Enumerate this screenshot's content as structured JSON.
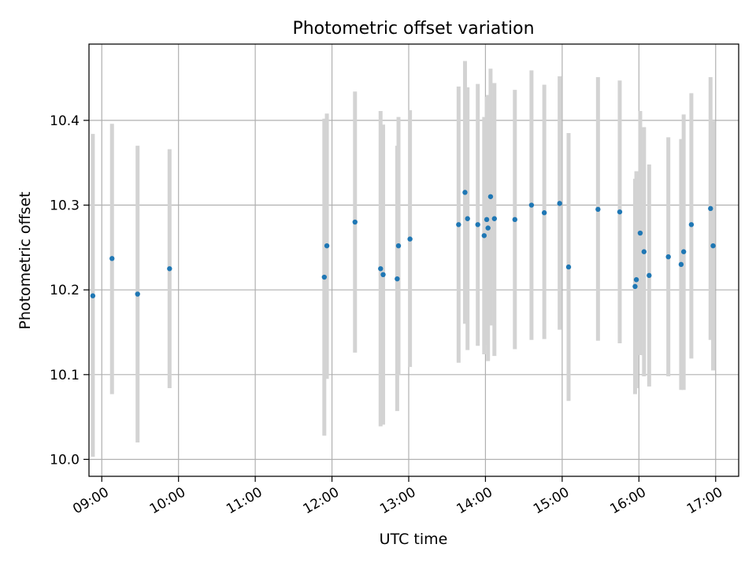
{
  "chart_data": {
    "type": "scatter",
    "title": "Photometric offset variation",
    "xlabel": "UTC time",
    "ylabel": "Photometric offset",
    "x_unit": "hours (UTC)",
    "xlim": [
      "08:50",
      "17:18"
    ],
    "ylim": [
      9.98,
      10.49
    ],
    "x_ticks": [
      "09:00",
      "10:00",
      "11:00",
      "12:00",
      "13:00",
      "14:00",
      "15:00",
      "16:00",
      "17:00"
    ],
    "y_ticks": [
      "10.0",
      "10.1",
      "10.2",
      "10.3",
      "10.4"
    ],
    "grid": true,
    "legend": "none",
    "colors": {
      "point": "#1f77b4",
      "errorbar": "#d3d3d3",
      "grid": "#b0b0b0",
      "axes": "#000000"
    },
    "points": [
      {
        "x": "08:53",
        "y": 10.193,
        "y_low": 10.003,
        "y_high": 10.384
      },
      {
        "x": "09:08",
        "y": 10.237,
        "y_low": 10.077,
        "y_high": 10.396
      },
      {
        "x": "09:28",
        "y": 10.195,
        "y_low": 10.02,
        "y_high": 10.37
      },
      {
        "x": "09:53",
        "y": 10.225,
        "y_low": 10.084,
        "y_high": 10.366
      },
      {
        "x": "11:54",
        "y": 10.215,
        "y_low": 10.028,
        "y_high": 10.402
      },
      {
        "x": "11:56",
        "y": 10.252,
        "y_low": 10.095,
        "y_high": 10.408
      },
      {
        "x": "12:18",
        "y": 10.28,
        "y_low": 10.126,
        "y_high": 10.434
      },
      {
        "x": "12:38",
        "y": 10.225,
        "y_low": 10.039,
        "y_high": 10.411
      },
      {
        "x": "12:40",
        "y": 10.218,
        "y_low": 10.041,
        "y_high": 10.395
      },
      {
        "x": "12:51",
        "y": 10.213,
        "y_low": 10.057,
        "y_high": 10.37
      },
      {
        "x": "12:52",
        "y": 10.252,
        "y_low": 10.1,
        "y_high": 10.404
      },
      {
        "x": "13:01",
        "y": 10.26,
        "y_low": 10.109,
        "y_high": 10.412
      },
      {
        "x": "13:39",
        "y": 10.277,
        "y_low": 10.114,
        "y_high": 10.44
      },
      {
        "x": "13:44",
        "y": 10.315,
        "y_low": 10.16,
        "y_high": 10.47
      },
      {
        "x": "13:46",
        "y": 10.284,
        "y_low": 10.129,
        "y_high": 10.439
      },
      {
        "x": "13:54",
        "y": 10.277,
        "y_low": 10.134,
        "y_high": 10.443
      },
      {
        "x": "13:59",
        "y": 10.264,
        "y_low": 10.124,
        "y_high": 10.404
      },
      {
        "x": "14:01",
        "y": 10.283,
        "y_low": 10.135,
        "y_high": 10.428
      },
      {
        "x": "14:02",
        "y": 10.273,
        "y_low": 10.116,
        "y_high": 10.43
      },
      {
        "x": "14:04",
        "y": 10.31,
        "y_low": 10.158,
        "y_high": 10.461
      },
      {
        "x": "14:07",
        "y": 10.284,
        "y_low": 10.122,
        "y_high": 10.444
      },
      {
        "x": "14:23",
        "y": 10.283,
        "y_low": 10.13,
        "y_high": 10.436
      },
      {
        "x": "14:36",
        "y": 10.3,
        "y_low": 10.141,
        "y_high": 10.459
      },
      {
        "x": "14:46",
        "y": 10.291,
        "y_low": 10.142,
        "y_high": 10.442
      },
      {
        "x": "14:58",
        "y": 10.302,
        "y_low": 10.153,
        "y_high": 10.452
      },
      {
        "x": "15:05",
        "y": 10.227,
        "y_low": 10.069,
        "y_high": 10.385
      },
      {
        "x": "15:28",
        "y": 10.295,
        "y_low": 10.14,
        "y_high": 10.451
      },
      {
        "x": "15:45",
        "y": 10.292,
        "y_low": 10.137,
        "y_high": 10.447
      },
      {
        "x": "15:57",
        "y": 10.204,
        "y_low": 10.077,
        "y_high": 10.331
      },
      {
        "x": "15:58",
        "y": 10.212,
        "y_low": 10.084,
        "y_high": 10.34
      },
      {
        "x": "16:01",
        "y": 10.267,
        "y_low": 10.123,
        "y_high": 10.411
      },
      {
        "x": "16:04",
        "y": 10.245,
        "y_low": 10.098,
        "y_high": 10.392
      },
      {
        "x": "16:08",
        "y": 10.217,
        "y_low": 10.086,
        "y_high": 10.348
      },
      {
        "x": "16:23",
        "y": 10.239,
        "y_low": 10.098,
        "y_high": 10.38
      },
      {
        "x": "16:33",
        "y": 10.23,
        "y_low": 10.082,
        "y_high": 10.378
      },
      {
        "x": "16:35",
        "y": 10.245,
        "y_low": 10.082,
        "y_high": 10.407
      },
      {
        "x": "16:41",
        "y": 10.277,
        "y_low": 10.119,
        "y_high": 10.432
      },
      {
        "x": "16:56",
        "y": 10.296,
        "y_low": 10.141,
        "y_high": 10.451
      },
      {
        "x": "16:58",
        "y": 10.252,
        "y_low": 10.105,
        "y_high": 10.399
      }
    ]
  }
}
